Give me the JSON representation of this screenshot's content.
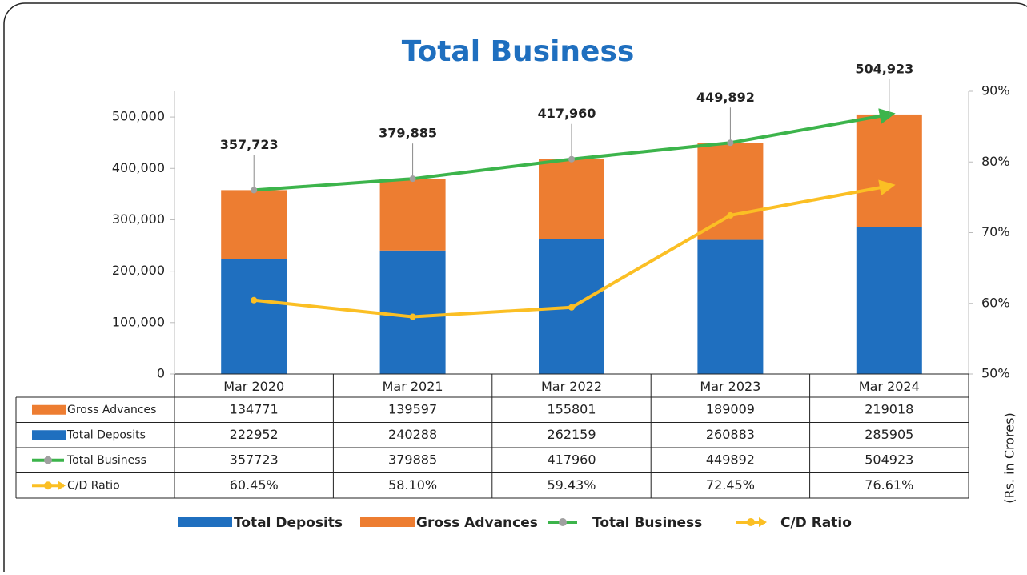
{
  "chart_data": {
    "type": "bar",
    "stacked": true,
    "title": "Total Business",
    "y2_label": "(Rs. in Crores)",
    "categories": [
      "Mar 2020",
      "Mar 2021",
      "Mar 2022",
      "Mar 2023",
      "Mar 2024"
    ],
    "series": [
      {
        "name": "Total Deposits",
        "type": "bar",
        "color": "#1f6fbf",
        "values": [
          222952,
          240288,
          262159,
          260883,
          285905
        ]
      },
      {
        "name": "Gross Advances",
        "type": "bar",
        "color": "#ed7d31",
        "values": [
          134771,
          139597,
          155801,
          189009,
          219018
        ]
      },
      {
        "name": "Total Business",
        "type": "line",
        "color": "#3cb44b",
        "marker_color": "#a0a0a0",
        "values": [
          357723,
          379885,
          417960,
          449892,
          504923
        ],
        "value_labels": [
          "357,723",
          "379,885",
          "417,960",
          "449,892",
          "504,923"
        ]
      },
      {
        "name": "C/D Ratio",
        "type": "line",
        "axis": "y2",
        "color": "#fbbf24",
        "values": [
          60.45,
          58.1,
          59.43,
          72.45,
          76.61
        ],
        "value_labels": [
          "60.45%",
          "58.10%",
          "59.43%",
          "72.45%",
          "76.61%"
        ]
      }
    ],
    "ylim": [
      0,
      550000
    ],
    "yticks": [
      0,
      {
        "value": 100000,
        "label": "100,000"
      },
      {
        "value": 200000,
        "label": "200,000"
      },
      {
        "value": 300000,
        "label": "300,000"
      },
      {
        "value": 400000,
        "label": "400,000"
      },
      {
        "value": 500000,
        "label": "500,000"
      }
    ],
    "y2lim": [
      50,
      90
    ],
    "y2ticks": [
      {
        "value": 50,
        "label": "50%"
      },
      {
        "value": 60,
        "label": "60%"
      },
      {
        "value": 70,
        "label": "70%"
      },
      {
        "value": 80,
        "label": "80%"
      },
      {
        "value": 90,
        "label": "90%"
      }
    ],
    "table_rows": [
      1,
      0,
      2,
      3
    ]
  }
}
